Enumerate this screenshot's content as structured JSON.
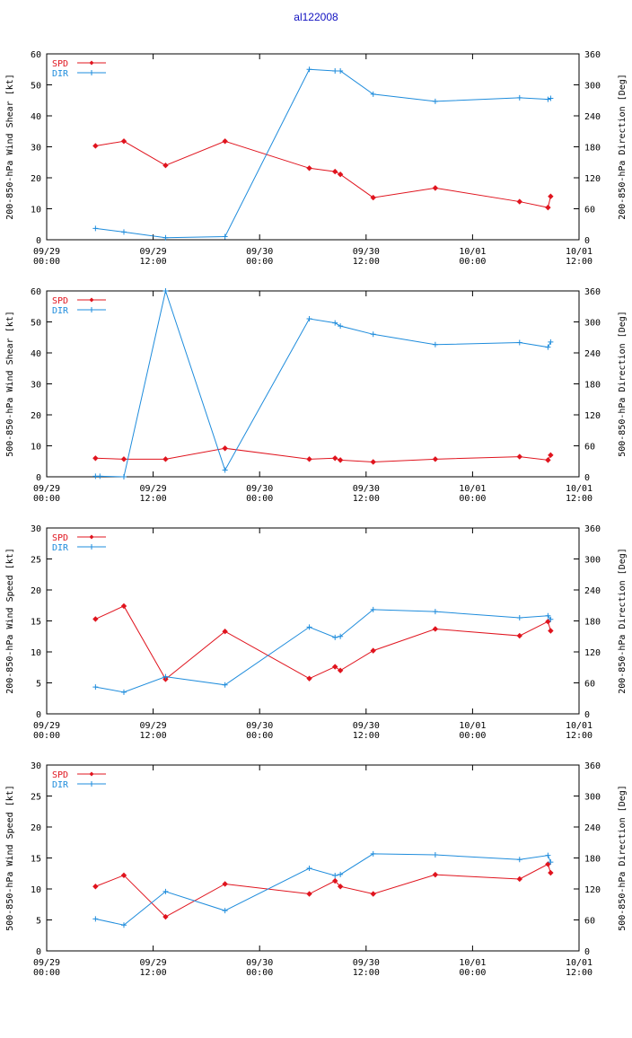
{
  "title": "al122008",
  "colors": {
    "spd": "#e0141e",
    "dir": "#1e8cdc"
  },
  "x_ticks": [
    {
      "line1": "09/29",
      "line2": "00:00"
    },
    {
      "line1": "09/29",
      "line2": "12:00"
    },
    {
      "line1": "09/30",
      "line2": "00:00"
    },
    {
      "line1": "09/30",
      "line2": "12:00"
    },
    {
      "line1": "10/01",
      "line2": "00:00"
    },
    {
      "line1": "10/01",
      "line2": "12:00"
    }
  ],
  "chart_data": [
    {
      "type": "line",
      "ylabel_left": "200-850-hPa Wind Shear [kt]",
      "ylabel_right": "200-850-hPa Direction [Deg]",
      "ylim_left": [
        0,
        60
      ],
      "yticks_left": [
        0,
        10,
        20,
        30,
        40,
        50,
        60
      ],
      "ylim_right": [
        0,
        360
      ],
      "yticks_right": [
        0,
        60,
        120,
        180,
        240,
        300,
        360
      ],
      "xlim_hours": [
        0,
        60
      ],
      "legend": "top-left",
      "series": [
        {
          "name": "SPD",
          "axis": "left",
          "color": "#e0141e",
          "marker": "diamond",
          "x": [
            5.5,
            8.7,
            13.4,
            20.1,
            29.6,
            32.5,
            33.1,
            36.8,
            43.8,
            53.3,
            56.5,
            56.8
          ],
          "values": [
            30.3,
            31.8,
            24.0,
            31.8,
            23.1,
            22.0,
            21.1,
            13.6,
            16.7,
            12.3,
            10.4,
            14.0
          ]
        },
        {
          "name": "DIR",
          "axis": "right",
          "color": "#1e8cdc",
          "marker": "plus",
          "x": [
            5.5,
            8.7,
            13.4,
            20.1,
            29.6,
            32.5,
            33.1,
            36.8,
            43.8,
            53.3,
            56.5,
            56.8
          ],
          "values": [
            22,
            15,
            4,
            6,
            330,
            327,
            327,
            282,
            268,
            275,
            272,
            274
          ]
        }
      ]
    },
    {
      "type": "line",
      "ylabel_left": "500-850-hPa Wind Shear [kt]",
      "ylabel_right": "500-850-hPa Direction [Deg]",
      "ylim_left": [
        0,
        60
      ],
      "yticks_left": [
        0,
        10,
        20,
        30,
        40,
        50,
        60
      ],
      "ylim_right": [
        0,
        360
      ],
      "yticks_right": [
        0,
        60,
        120,
        180,
        240,
        300,
        360
      ],
      "xlim_hours": [
        0,
        60
      ],
      "legend": "top-left",
      "series": [
        {
          "name": "SPD",
          "axis": "left",
          "color": "#e0141e",
          "marker": "diamond",
          "x": [
            5.5,
            8.7,
            13.4,
            20.1,
            29.6,
            32.5,
            33.1,
            36.8,
            43.8,
            53.3,
            56.5,
            56.8
          ],
          "values": [
            6.0,
            5.7,
            5.7,
            9.2,
            5.7,
            6.0,
            5.4,
            4.8,
            5.7,
            6.5,
            5.4,
            7.0
          ]
        },
        {
          "name": "DIR",
          "axis": "right",
          "color": "#1e8cdc",
          "marker": "plus",
          "x": [
            5.5,
            6.0,
            8.7,
            13.4,
            20.1,
            29.6,
            32.5,
            33.1,
            36.8,
            43.8,
            53.3,
            56.5,
            56.8
          ],
          "values": [
            1,
            1,
            0,
            360,
            13,
            306,
            298,
            292,
            276,
            256,
            260,
            251,
            261
          ]
        }
      ]
    },
    {
      "type": "line",
      "ylabel_left": "200-850-hPa Wind Speed [kt]",
      "ylabel_right": "200-850-hPa Direction [Deg]",
      "ylim_left": [
        0,
        30
      ],
      "yticks_left": [
        0,
        5,
        10,
        15,
        20,
        25,
        30
      ],
      "ylim_right": [
        0,
        360
      ],
      "yticks_right": [
        0,
        60,
        120,
        180,
        240,
        300,
        360
      ],
      "xlim_hours": [
        0,
        60
      ],
      "legend": "top-left",
      "series": [
        {
          "name": "SPD",
          "axis": "left",
          "color": "#e0141e",
          "marker": "diamond",
          "x": [
            5.5,
            8.7,
            13.4,
            20.1,
            29.6,
            32.5,
            33.1,
            36.8,
            43.8,
            53.3,
            56.5,
            56.8
          ],
          "values": [
            15.3,
            17.4,
            5.6,
            13.3,
            5.7,
            7.6,
            7.0,
            10.2,
            13.7,
            12.6,
            14.9,
            13.4
          ]
        },
        {
          "name": "DIR",
          "axis": "right",
          "color": "#1e8cdc",
          "marker": "plus",
          "x": [
            5.5,
            8.7,
            13.4,
            20.1,
            29.6,
            32.5,
            33.1,
            36.8,
            43.8,
            53.3,
            56.5,
            56.8
          ],
          "values": [
            52,
            42,
            72,
            56,
            168,
            148,
            150,
            202,
            198,
            186,
            190,
            183
          ]
        }
      ]
    },
    {
      "type": "line",
      "ylabel_left": "500-850-hPa Wind Speed [kt]",
      "ylabel_right": "500-850-hPa Direction [Deg]",
      "ylim_left": [
        0,
        30
      ],
      "yticks_left": [
        0,
        5,
        10,
        15,
        20,
        25,
        30
      ],
      "ylim_right": [
        0,
        360
      ],
      "yticks_right": [
        0,
        60,
        120,
        180,
        240,
        300,
        360
      ],
      "xlim_hours": [
        0,
        60
      ],
      "legend": "top-left",
      "series": [
        {
          "name": "SPD",
          "axis": "left",
          "color": "#e0141e",
          "marker": "diamond",
          "x": [
            5.5,
            8.7,
            13.4,
            20.1,
            29.6,
            32.5,
            33.1,
            36.8,
            43.8,
            53.3,
            56.5,
            56.8
          ],
          "values": [
            10.4,
            12.2,
            5.5,
            10.8,
            9.2,
            11.3,
            10.4,
            9.2,
            12.3,
            11.6,
            14.0,
            12.6
          ]
        },
        {
          "name": "DIR",
          "axis": "right",
          "color": "#1e8cdc",
          "marker": "plus",
          "x": [
            5.5,
            8.7,
            13.4,
            20.1,
            29.6,
            32.5,
            33.1,
            36.8,
            43.8,
            53.3,
            56.5,
            56.8
          ],
          "values": [
            62,
            50,
            115,
            78,
            160,
            146,
            148,
            188,
            186,
            177,
            185,
            172
          ]
        }
      ]
    }
  ]
}
